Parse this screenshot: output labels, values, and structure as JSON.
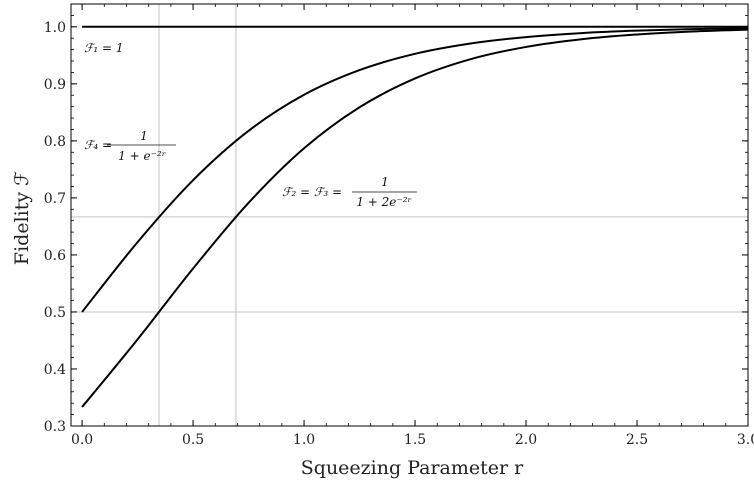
{
  "chart_data": {
    "type": "line",
    "xlabel": "Squeezing Parameter r",
    "ylabel": "Fidelity ℱ",
    "xlim": [
      -0.05,
      3.0
    ],
    "ylim": [
      0.3,
      1.04
    ],
    "x_ticks": [
      0.0,
      0.5,
      1.0,
      1.5,
      2.0,
      2.5,
      3.0
    ],
    "x_tick_labels": [
      "0.0",
      "0.5",
      "1.0",
      "1.5",
      "2.0",
      "2.5",
      "3.0"
    ],
    "y_ticks": [
      0.3,
      0.4,
      0.5,
      0.6,
      0.7,
      0.8,
      0.9,
      1.0
    ],
    "y_tick_labels": [
      "0.3",
      "0.4",
      "0.5",
      "0.6",
      "0.7",
      "0.8",
      "0.9",
      "1.0"
    ],
    "grid": false,
    "reference_lines": {
      "horizontal": [
        0.5,
        0.6667
      ],
      "vertical": [
        0.3466,
        0.6931
      ]
    },
    "series": [
      {
        "color": "#000000",
        "x": [
          0.0,
          0.5,
          1.0,
          1.5,
          2.0,
          2.5,
          3.0
        ],
        "y": [
          1.0,
          1.0,
          1.0,
          1.0,
          1.0,
          1.0,
          1.0
        ]
      },
      {
        "color": "#000000",
        "x": [
          0.0,
          0.25,
          0.5,
          0.75,
          1.0,
          1.25,
          1.5,
          1.75,
          2.0,
          2.25,
          2.5,
          2.75,
          3.0
        ],
        "y": [
          0.5,
          0.6225,
          0.7311,
          0.8176,
          0.8808,
          0.9241,
          0.9526,
          0.9707,
          0.982,
          0.989,
          0.9933,
          0.9959,
          0.9975
        ]
      },
      {
        "color": "#000000",
        "x": [
          0.0,
          0.25,
          0.5,
          0.75,
          1.0,
          1.25,
          1.5,
          1.75,
          2.0,
          2.25,
          2.5,
          2.75,
          3.0
        ],
        "y": [
          0.3333,
          0.4519,
          0.5761,
          0.6913,
          0.787,
          0.8589,
          0.9094,
          0.9432,
          0.9647,
          0.9782,
          0.9866,
          0.9918,
          0.995
        ]
      }
    ],
    "annotations": [
      {
        "id": "f1",
        "lhs": "ℱ₁ = 1"
      },
      {
        "id": "f4",
        "lhs": "ℱ₄ =",
        "num": "1",
        "den": "1 + e⁻²ʳ"
      },
      {
        "id": "f23",
        "lhs": "ℱ₂ = ℱ₃ =",
        "num": "1",
        "den": "1 + 2e⁻²ʳ"
      }
    ]
  }
}
